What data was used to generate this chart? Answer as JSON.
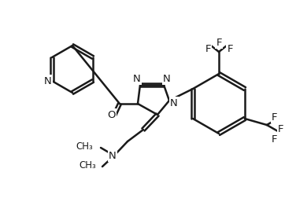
{
  "line_color": "#1a1a1a",
  "background": "#ffffff",
  "line_width": 1.8,
  "figsize": [
    3.76,
    2.8
  ],
  "dpi": 100,
  "font_size": 9.5,
  "atom_labels": {
    "N": "N",
    "O": "O",
    "F": "F"
  }
}
